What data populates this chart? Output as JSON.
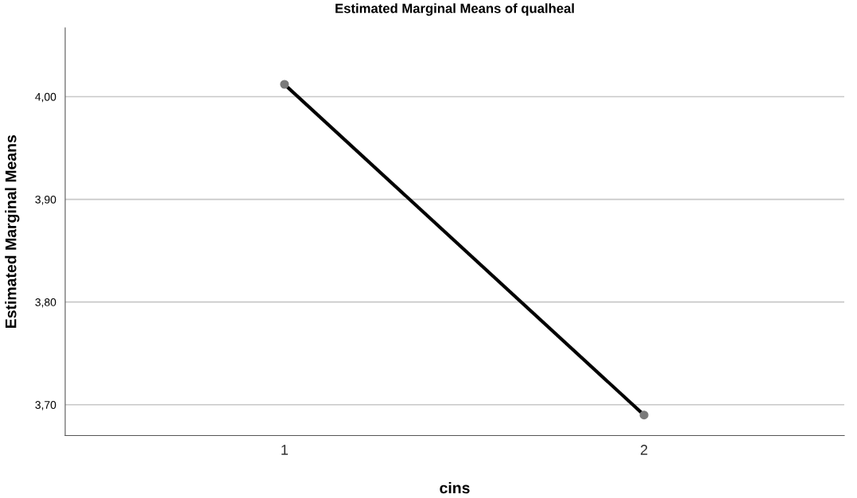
{
  "chart_data": {
    "type": "line",
    "title": "Estimated Marginal Means of qualheal",
    "xlabel": "cins",
    "ylabel": "Estimated Marginal Means",
    "categories": [
      "1",
      "2"
    ],
    "series": [
      {
        "color": "#000000",
        "values": [
          4.012,
          3.69
        ]
      }
    ],
    "ylim": [
      3.67,
      4.067
    ],
    "yticks": [
      {
        "value": 3.7,
        "label": "3,70"
      },
      {
        "value": 3.8,
        "label": "3,80"
      },
      {
        "value": 3.9,
        "label": "3,90"
      },
      {
        "value": 4.0,
        "label": "4,00"
      }
    ],
    "grid": "y",
    "marker": "circle",
    "line_style": "solid",
    "legend": false
  }
}
